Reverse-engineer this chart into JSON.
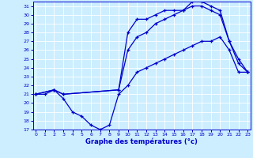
{
  "xlabel": "Graphe des températures (°c)",
  "bg_color": "#cceeff",
  "line_color": "#0000cc",
  "grid_color": "#ffffff",
  "ylim": [
    17,
    31.5
  ],
  "xlim": [
    -0.3,
    23.3
  ],
  "yticks": [
    17,
    18,
    19,
    20,
    21,
    22,
    23,
    24,
    25,
    26,
    27,
    28,
    29,
    30,
    31
  ],
  "xticks": [
    0,
    1,
    2,
    3,
    4,
    5,
    6,
    7,
    8,
    9,
    10,
    11,
    12,
    13,
    14,
    15,
    16,
    17,
    18,
    19,
    20,
    21,
    22,
    23
  ],
  "line_min_x": [
    0,
    1,
    2,
    3,
    4,
    5,
    6,
    7,
    8,
    9,
    10,
    11,
    12,
    13,
    14,
    15,
    16,
    17,
    18,
    19,
    20,
    21,
    22,
    23
  ],
  "line_min_y": [
    21.0,
    21.0,
    21.5,
    20.5,
    19.0,
    18.5,
    17.5,
    17.0,
    17.5,
    21.0,
    22.0,
    23.5,
    24.0,
    24.5,
    25.0,
    25.5,
    26.0,
    26.5,
    27.0,
    27.0,
    27.5,
    26.0,
    23.5,
    23.5
  ],
  "line_med_x": [
    0,
    2,
    3,
    9,
    10,
    11,
    12,
    13,
    14,
    15,
    16,
    17,
    18,
    19,
    20,
    21,
    22,
    23
  ],
  "line_med_y": [
    21.0,
    21.5,
    21.0,
    21.5,
    26.0,
    27.5,
    28.0,
    29.0,
    29.5,
    30.0,
    30.5,
    31.0,
    31.0,
    30.5,
    30.0,
    27.0,
    24.5,
    23.5
  ],
  "line_max_x": [
    0,
    2,
    3,
    9,
    10,
    11,
    12,
    13,
    14,
    15,
    16,
    17,
    18,
    19,
    20,
    21,
    22,
    23
  ],
  "line_max_y": [
    21.0,
    21.5,
    21.0,
    21.5,
    28.0,
    29.5,
    29.5,
    30.0,
    30.5,
    30.5,
    30.5,
    31.5,
    31.5,
    31.0,
    30.5,
    27.0,
    25.0,
    23.5
  ]
}
